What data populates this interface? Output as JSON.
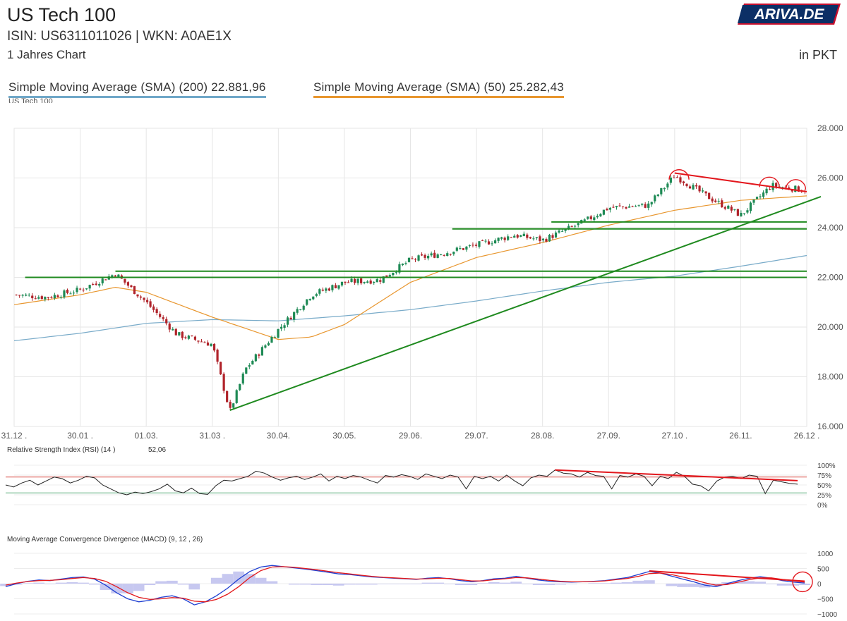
{
  "header": {
    "title": "US Tech 100",
    "isin": "ISIN: US6311011026  | WKN: A0AE1X",
    "period": "1 Jahres Chart",
    "unit": "in PKT",
    "logo_text": "ARIVA.DE"
  },
  "legend": {
    "sma200": "Simple Moving Average (SMA) (200) 22.881,96",
    "sma50": "Simple Moving Average (SMA) (50) 25.282,43"
  },
  "colors": {
    "up": "#1e8a55",
    "down": "#b0232a",
    "sma200": "#79abc9",
    "sma50": "#e8962e",
    "annotation_green": "#1f8a1f",
    "annotation_red": "#e3161c",
    "macd": "#1f3fd1",
    "signal": "#e31a1c",
    "histogram": "#c7c8f0"
  },
  "chart_data": [
    {
      "type": "candlestick",
      "label": "US Tech 100",
      "x_ticks": [
        "31.12",
        "30.01",
        "01.03",
        "31.03",
        "30.04",
        "30.05",
        "29.06",
        "29.07",
        "28.08",
        "27.09",
        "27.10",
        "26.11",
        "26.12"
      ],
      "y_ticks": [
        "16.000",
        "18.000",
        "20.000",
        "22.000",
        "24.000",
        "26.000",
        "28.000"
      ],
      "ylim": [
        16000,
        28000
      ],
      "grid": true,
      "close_approx": [
        {
          "date": "31.12",
          "value": 21300
        },
        {
          "date": "15.01",
          "value": 21200
        },
        {
          "date": "30.01",
          "value": 21500
        },
        {
          "date": "15.02",
          "value": 22150
        },
        {
          "date": "01.03",
          "value": 21000
        },
        {
          "date": "15.03",
          "value": 19700
        },
        {
          "date": "31.03",
          "value": 19300
        },
        {
          "date": "08.04",
          "value": 16600
        },
        {
          "date": "15.04",
          "value": 18300
        },
        {
          "date": "30.04",
          "value": 19900
        },
        {
          "date": "15.05",
          "value": 21300
        },
        {
          "date": "30.05",
          "value": 21800
        },
        {
          "date": "15.06",
          "value": 21900
        },
        {
          "date": "29.06",
          "value": 22700
        },
        {
          "date": "15.07",
          "value": 23000
        },
        {
          "date": "29.07",
          "value": 23300
        },
        {
          "date": "15.08",
          "value": 23700
        },
        {
          "date": "28.08",
          "value": 23500
        },
        {
          "date": "15.09",
          "value": 24200
        },
        {
          "date": "27.09",
          "value": 24800
        },
        {
          "date": "15.10",
          "value": 24900
        },
        {
          "date": "27.10",
          "value": 26100
        },
        {
          "date": "10.11",
          "value": 25300
        },
        {
          "date": "26.11",
          "value": 24500
        },
        {
          "date": "10.12",
          "value": 25700
        },
        {
          "date": "26.12",
          "value": 25500
        }
      ],
      "sma200_approx": [
        {
          "date": "31.12",
          "value": 19450
        },
        {
          "date": "30.01",
          "value": 19750
        },
        {
          "date": "01.03",
          "value": 20150
        },
        {
          "date": "31.03",
          "value": 20300
        },
        {
          "date": "30.04",
          "value": 20250
        },
        {
          "date": "30.05",
          "value": 20450
        },
        {
          "date": "29.06",
          "value": 20700
        },
        {
          "date": "29.07",
          "value": 21050
        },
        {
          "date": "28.08",
          "value": 21450
        },
        {
          "date": "27.09",
          "value": 21800
        },
        {
          "date": "27.10",
          "value": 22050
        },
        {
          "date": "26.11",
          "value": 22450
        },
        {
          "date": "26.12",
          "value": 22880
        }
      ],
      "sma50_approx": [
        {
          "date": "31.12",
          "value": 20900
        },
        {
          "date": "30.01",
          "value": 21300
        },
        {
          "date": "15.02",
          "value": 21600
        },
        {
          "date": "01.03",
          "value": 21400
        },
        {
          "date": "31.03",
          "value": 20400
        },
        {
          "date": "30.04",
          "value": 19500
        },
        {
          "date": "15.05",
          "value": 19600
        },
        {
          "date": "30.05",
          "value": 20100
        },
        {
          "date": "29.06",
          "value": 21800
        },
        {
          "date": "29.07",
          "value": 22800
        },
        {
          "date": "28.08",
          "value": 23400
        },
        {
          "date": "27.09",
          "value": 24100
        },
        {
          "date": "27.10",
          "value": 24700
        },
        {
          "date": "26.11",
          "value": 25100
        },
        {
          "date": "26.12",
          "value": 25280
        }
      ],
      "annotations": {
        "support_lines": [
          {
            "from": "05.01",
            "to": "26.12",
            "value": 22000
          },
          {
            "from": "15.02",
            "to": "26.12",
            "value": 22250
          },
          {
            "from": "18.07",
            "to": "26.12",
            "value": 23950
          },
          {
            "from": "01.09",
            "to": "26.12",
            "value": 24230
          }
        ],
        "uptrend": {
          "from_date": "08.04",
          "from_value": 16650,
          "to_date": "26.12",
          "to_value": 25050
        },
        "downtrend": {
          "from_date": "27.10",
          "from_value": 26200,
          "to_date": "26.12",
          "to_value": 25450
        },
        "top_circles": [
          "29.10",
          "09.12",
          "21.12"
        ]
      }
    },
    {
      "type": "line",
      "label": "Relative Strength Index (RSI) (14 )",
      "value_text": "52,06",
      "y_ticks": [
        "0%",
        "25%",
        "50%",
        "75%",
        "100%"
      ],
      "ylim": [
        0,
        100
      ],
      "levels": [
        30,
        70
      ],
      "values": [
        50,
        45,
        55,
        62,
        50,
        60,
        70,
        66,
        55,
        62,
        72,
        68,
        50,
        40,
        30,
        25,
        32,
        28,
        33,
        40,
        52,
        35,
        30,
        42,
        28,
        26,
        48,
        62,
        60,
        66,
        72,
        85,
        80,
        70,
        62,
        68,
        72,
        64,
        70,
        78,
        60,
        72,
        66,
        74,
        70,
        62,
        55,
        74,
        70,
        76,
        72,
        64,
        78,
        72,
        66,
        75,
        70,
        40,
        72,
        66,
        72,
        60,
        75,
        60,
        48,
        68,
        75,
        72,
        88,
        80,
        78,
        70,
        82,
        74,
        72,
        40,
        74,
        70,
        78,
        72,
        48,
        72,
        66,
        82,
        72,
        52,
        48,
        35,
        60,
        70,
        72,
        66,
        75,
        72,
        28,
        62,
        58,
        54,
        52
      ],
      "divergence_line": {
        "from_index": 68,
        "from_value": 88,
        "to_index": 98,
        "to_value": 61
      }
    },
    {
      "type": "line",
      "label": "Moving Average Convergence Divergence (MACD) (9, 12 , 26)",
      "y_ticks": [
        "−1000",
        "−500",
        "0",
        "500",
        "1000"
      ],
      "ylim": [
        -1000,
        1000
      ],
      "macd": [
        -100,
        0,
        80,
        120,
        100,
        150,
        200,
        220,
        150,
        -50,
        -300,
        -500,
        -600,
        -550,
        -450,
        -400,
        -500,
        -700,
        -600,
        -400,
        -150,
        150,
        400,
        550,
        600,
        560,
        520,
        480,
        430,
        380,
        320,
        300,
        260,
        220,
        200,
        180,
        160,
        140,
        180,
        200,
        160,
        100,
        60,
        100,
        160,
        180,
        240,
        180,
        120,
        80,
        60,
        50,
        60,
        80,
        100,
        150,
        200,
        300,
        400,
        350,
        250,
        150,
        60,
        -50,
        -100,
        0,
        100,
        180,
        230,
        180,
        100,
        50,
        20
      ],
      "signal": [
        -50,
        20,
        70,
        100,
        110,
        130,
        170,
        200,
        170,
        80,
        -100,
        -300,
        -450,
        -520,
        -500,
        -460,
        -480,
        -580,
        -600,
        -520,
        -350,
        -100,
        200,
        430,
        550,
        560,
        540,
        500,
        460,
        410,
        360,
        320,
        280,
        240,
        210,
        190,
        170,
        150,
        160,
        180,
        170,
        130,
        90,
        90,
        130,
        160,
        200,
        190,
        150,
        110,
        80,
        60,
        60,
        70,
        90,
        130,
        170,
        240,
        330,
        350,
        300,
        220,
        130,
        30,
        -50,
        -30,
        50,
        130,
        190,
        190,
        140,
        90,
        50
      ],
      "divergence_line": {
        "from_index": 58,
        "from_value": 420,
        "to_index": 72,
        "to_value": 80
      }
    }
  ]
}
